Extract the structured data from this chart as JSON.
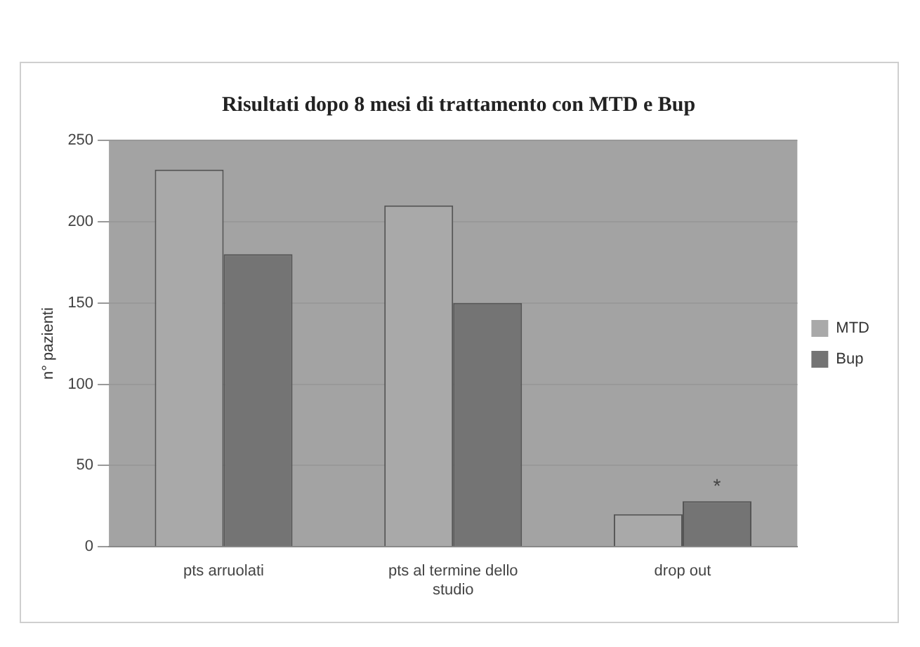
{
  "chart_data": {
    "type": "bar",
    "title": "Risultati dopo 8 mesi di trattamento con MTD e Bup",
    "ylabel": "n° pazienti",
    "categories": [
      "pts arruolati",
      "pts al termine dello studio",
      "drop out"
    ],
    "series": [
      {
        "name": "MTD",
        "color": "#a9a9a9",
        "values": [
          232,
          210,
          20
        ]
      },
      {
        "name": "Bup",
        "color": "#747474",
        "values": [
          180,
          150,
          28
        ]
      }
    ],
    "ylim": [
      0,
      250
    ],
    "yticks": [
      0,
      50,
      100,
      150,
      200,
      250
    ],
    "grid": "y",
    "legend": "right",
    "annotations": [
      "*"
    ]
  }
}
